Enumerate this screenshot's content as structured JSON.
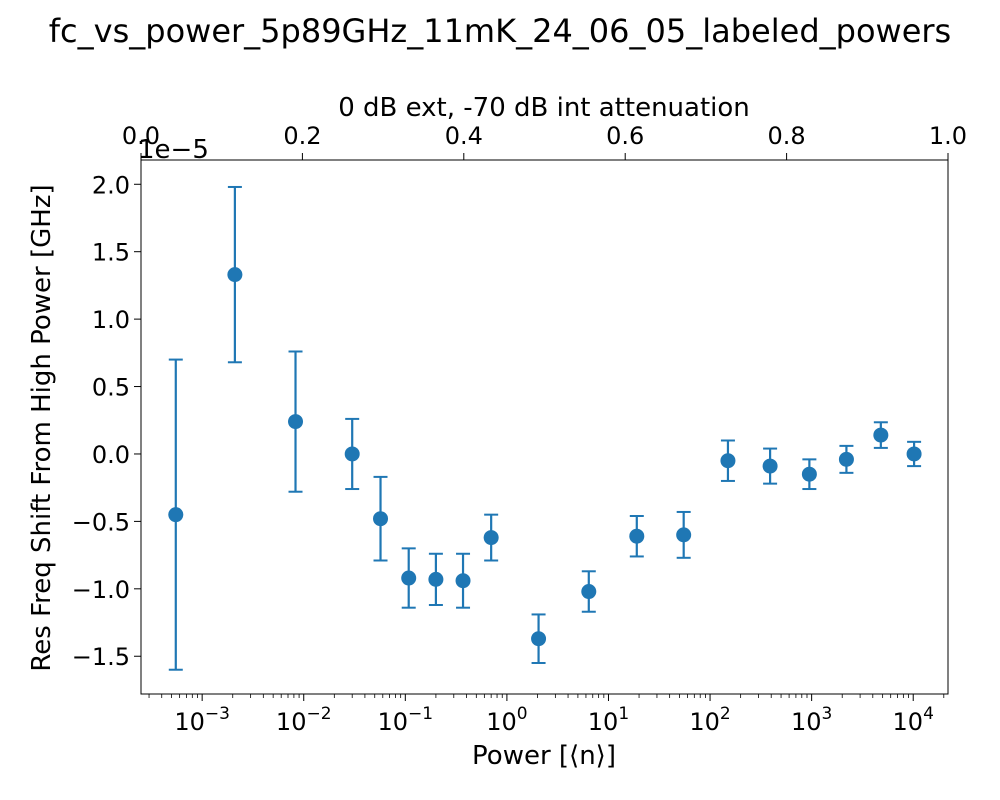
{
  "chart_data": {
    "type": "scatter",
    "title": "fc_vs_power_5p89GHz_11mK_24_06_05_labeled_powers",
    "xlabel": "Power [⟨n⟩]",
    "ylabel": "Res Freq Shift From High Power [GHz]",
    "secondary_xlabel": "0 dB ext, -70 dB int attenuation",
    "offset_text": "1e−5",
    "xscale": "log",
    "xlim": [
      0.00025,
      22000
    ],
    "ylim": [
      -1.78,
      2.18
    ],
    "y_multiplier": 1e-05,
    "secondary_xlim": [
      0.0,
      1.0
    ],
    "marker_color": "#1f77b4",
    "x_tick_labels": [
      {
        "base": "10",
        "exp": "−3",
        "value": 0.001
      },
      {
        "base": "10",
        "exp": "−2",
        "value": 0.01
      },
      {
        "base": "10",
        "exp": "−1",
        "value": 0.1
      },
      {
        "base": "10",
        "exp": "0",
        "value": 1
      },
      {
        "base": "10",
        "exp": "1",
        "value": 10
      },
      {
        "base": "10",
        "exp": "2",
        "value": 100
      },
      {
        "base": "10",
        "exp": "3",
        "value": 1000
      },
      {
        "base": "10",
        "exp": "4",
        "value": 10000
      }
    ],
    "y_tick_labels": [
      {
        "label": "−1.5",
        "value": -1.5
      },
      {
        "label": "−1.0",
        "value": -1.0
      },
      {
        "label": "−0.5",
        "value": -0.5
      },
      {
        "label": "0.0",
        "value": 0.0
      },
      {
        "label": "0.5",
        "value": 0.5
      },
      {
        "label": "1.0",
        "value": 1.0
      },
      {
        "label": "1.5",
        "value": 1.5
      },
      {
        "label": "2.0",
        "value": 2.0
      }
    ],
    "top_tick_labels": [
      {
        "label": "0.0",
        "value": 0.0
      },
      {
        "label": "0.2",
        "value": 0.2
      },
      {
        "label": "0.4",
        "value": 0.4
      },
      {
        "label": "0.6",
        "value": 0.6
      },
      {
        "label": "0.8",
        "value": 0.8
      },
      {
        "label": "1.0",
        "value": 1.0
      }
    ],
    "points": [
      {
        "x": 0.00055,
        "y": -0.45,
        "err": 1.15
      },
      {
        "x": 0.0021,
        "y": 1.33,
        "err": 0.65
      },
      {
        "x": 0.0083,
        "y": 0.24,
        "err": 0.52
      },
      {
        "x": 0.03,
        "y": 0.0,
        "err": 0.26
      },
      {
        "x": 0.057,
        "y": -0.48,
        "err": 0.31
      },
      {
        "x": 0.108,
        "y": -0.92,
        "err": 0.22
      },
      {
        "x": 0.2,
        "y": -0.93,
        "err": 0.19
      },
      {
        "x": 0.37,
        "y": -0.94,
        "err": 0.2
      },
      {
        "x": 0.7,
        "y": -0.62,
        "err": 0.17
      },
      {
        "x": 2.05,
        "y": -1.37,
        "err": 0.18
      },
      {
        "x": 6.4,
        "y": -1.02,
        "err": 0.15
      },
      {
        "x": 19.0,
        "y": -0.61,
        "err": 0.15
      },
      {
        "x": 55.0,
        "y": -0.6,
        "err": 0.17
      },
      {
        "x": 150,
        "y": -0.05,
        "err": 0.15
      },
      {
        "x": 390,
        "y": -0.09,
        "err": 0.13
      },
      {
        "x": 950,
        "y": -0.15,
        "err": 0.11
      },
      {
        "x": 2200,
        "y": -0.04,
        "err": 0.1
      },
      {
        "x": 4800,
        "y": 0.14,
        "err": 0.095
      },
      {
        "x": 10200,
        "y": 0.0,
        "err": 0.09
      }
    ]
  }
}
